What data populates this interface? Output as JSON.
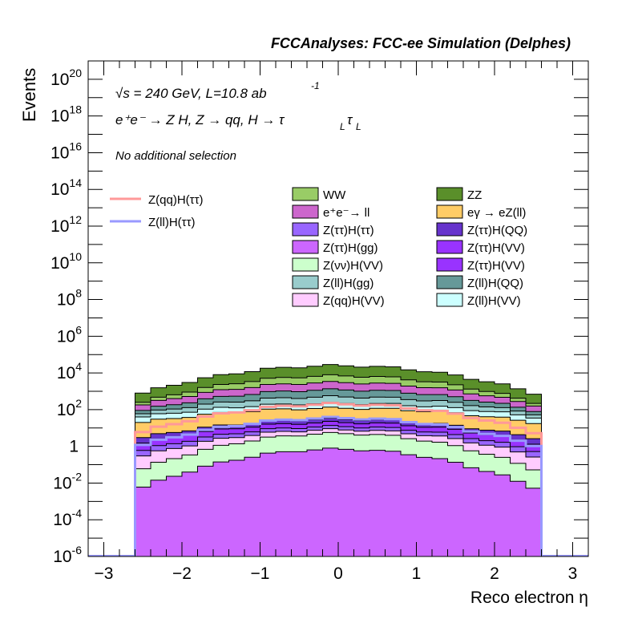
{
  "chart_data": {
    "type": "area",
    "title": "FCCAnalyses: FCC-ee Simulation (Delphes)",
    "xlabel": "Reco electron η",
    "ylabel": "Events",
    "xlim": [
      -3.2,
      3.2
    ],
    "ylim_exponent": [
      -6,
      21
    ],
    "y_scale": "log",
    "x_ticks": [
      "−3",
      "−2",
      "−1",
      "0",
      "1",
      "2",
      "3"
    ],
    "y_ticks": [
      {
        "base": "10",
        "exp": "20"
      },
      {
        "base": "10",
        "exp": "18"
      },
      {
        "base": "10",
        "exp": "16"
      },
      {
        "base": "10",
        "exp": "14"
      },
      {
        "base": "10",
        "exp": "12"
      },
      {
        "base": "10",
        "exp": "10"
      },
      {
        "base": "10",
        "exp": "8"
      },
      {
        "base": "10",
        "exp": "6"
      },
      {
        "base": "10",
        "exp": "4"
      },
      {
        "base": "10",
        "exp": "2"
      },
      {
        "base": "1",
        "exp": ""
      },
      {
        "base": "10",
        "exp": "-2"
      },
      {
        "base": "10",
        "exp": "-4"
      },
      {
        "base": "10",
        "exp": "-6"
      }
    ],
    "annotations": {
      "energy": "√s = 240 GeV, L=10.8 ab",
      "energy_sup": "-1",
      "process": "e⁺e⁻ → Z H, Z → qq, H → τ",
      "process_sub": "L",
      "process_tail": "τ",
      "selection": "No additional selection"
    },
    "legend_placement": "top",
    "bin_edges_range": [
      -2.6,
      2.6
    ],
    "n_bins": 26,
    "stack": [
      {
        "name": "ZZ",
        "color": "#5a8f2a",
        "top_center": 25000,
        "top_edge": 800
      },
      {
        "name": "WW",
        "color": "#99cc66",
        "top_center": 7000,
        "top_edge": 250
      },
      {
        "name": "e⁺e⁻→ ll",
        "color": "#cc66cc",
        "top_center": 3000,
        "top_edge": 180
      },
      {
        "name": "Z(ll)H(QQ)",
        "color": "#669999",
        "top_center": 1200,
        "top_edge": 90
      },
      {
        "name": "Z(ll)H(gg)",
        "color": "#99cccc",
        "top_center": 500,
        "top_edge": 60
      },
      {
        "name": "Z(ll)H(VV)",
        "color": "#ccffff",
        "top_center": 220,
        "top_edge": 40
      },
      {
        "name": "eγ → eZ(ll)",
        "color": "#ffcc66",
        "top_center": 120,
        "top_edge": 20
      },
      {
        "name": "Z(ττ)H(QQ)",
        "color": "#6633cc",
        "top_center": 30,
        "top_edge": 3
      },
      {
        "name": "Z(ττ)H(VV)",
        "color": "#9933ff",
        "top_center": 20,
        "top_edge": 1.5
      },
      {
        "name": "Z(ττ)H(ττ)",
        "color": "#9966ff",
        "top_center": 12,
        "top_edge": 0.6
      },
      {
        "name": "Z(qq)H(VV)",
        "color": "#ffccff",
        "top_center": 8,
        "top_edge": 0.3
      },
      {
        "name": "Z(νν)H(VV)",
        "color": "#ccffcc",
        "top_center": 5,
        "top_edge": 0.06
      },
      {
        "name": "Z(ττ)H(gg)",
        "color": "#cc66ff",
        "top_center": 0.7,
        "top_edge": 0.006
      }
    ],
    "lines": [
      {
        "name": "Z(qq)H(ττ)",
        "color": "#ff9999",
        "top_center": 200,
        "top_edge": 6
      },
      {
        "name": "Z(ll)H(ττ)",
        "color": "#9999ff",
        "top_center": 35,
        "top_edge": 1.2
      }
    ],
    "legend_left": [
      "Z(qq)H(ττ)",
      "Z(ll)H(ττ)"
    ],
    "legend_col1": [
      "WW",
      "e⁺e⁻→ ll",
      "Z(ττ)H(ττ)",
      "Z(ττ)H(gg)",
      "Z(νν)H(VV)",
      "Z(ll)H(gg)",
      "Z(qq)H(VV)"
    ],
    "legend_col2": [
      "ZZ",
      "eγ → eZ(ll)",
      "Z(ττ)H(QQ)",
      "Z(ττ)H(VV)",
      "Z(ττ)H(VV)",
      "Z(ll)H(QQ)",
      "Z(ll)H(VV)"
    ]
  }
}
